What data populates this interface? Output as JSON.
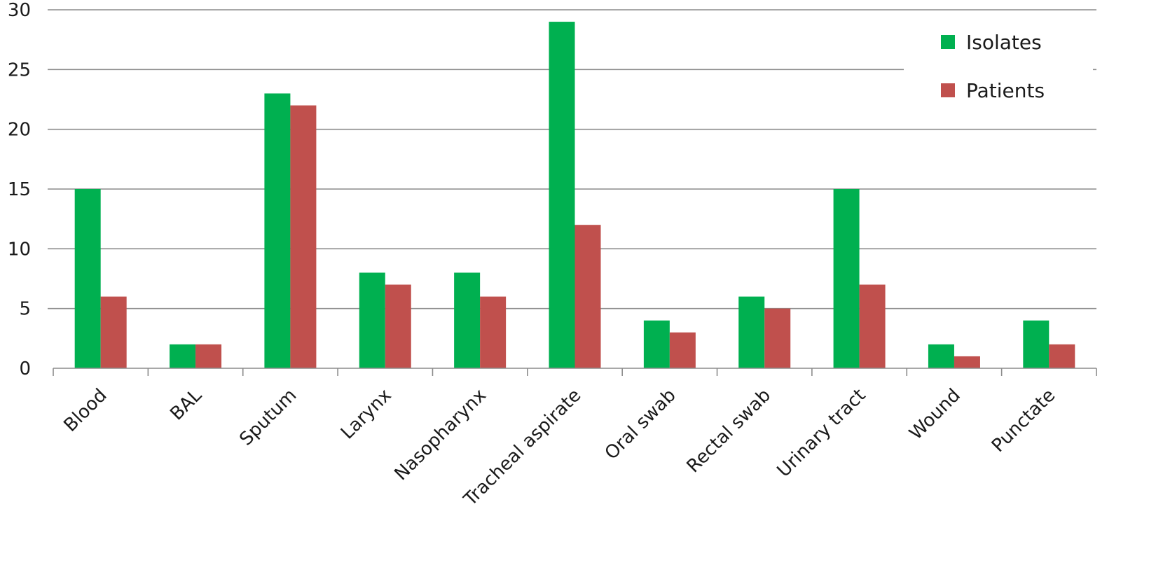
{
  "chart_data": {
    "type": "bar",
    "categories": [
      "Blood",
      "BAL",
      "Sputum",
      "Larynx",
      "Nasopharynx",
      "Tracheal aspirate",
      "Oral swab",
      "Rectal swab",
      "Urinary tract",
      "Wound",
      "Punctate"
    ],
    "series": [
      {
        "name": "Isolates",
        "color": "#00b050",
        "values": [
          15,
          2,
          23,
          8,
          8,
          29,
          4,
          6,
          15,
          2,
          4
        ]
      },
      {
        "name": "Patients",
        "color": "#c0504d",
        "values": [
          6,
          2,
          22,
          7,
          6,
          12,
          3,
          5,
          7,
          1,
          2
        ]
      }
    ],
    "ylim": [
      0,
      30
    ],
    "yticks": [
      0,
      5,
      10,
      15,
      20,
      25,
      30
    ],
    "grid": true,
    "legend": "top-right"
  }
}
